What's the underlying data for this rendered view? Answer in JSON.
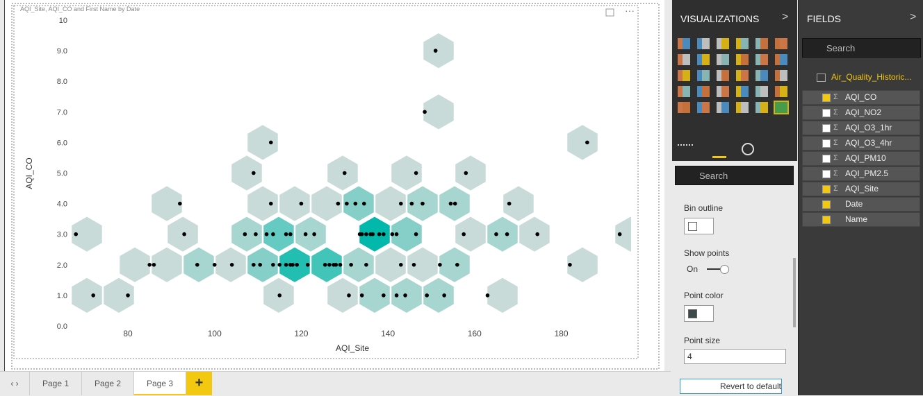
{
  "chart_data": {
    "type": "hexbin",
    "title": "AQI_Site, AQI_CO and First Name by Date",
    "x_label": "AQI_Site",
    "y_label": "AQI_CO",
    "series": [
      {
        "name": "AQI_CO",
        "color": "#000000",
        "x": [
          72,
          80,
          115,
          131,
          134,
          139,
          142,
          144,
          149,
          153,
          163,
          85,
          86,
          96,
          100,
          104,
          109,
          110.5,
          113.5,
          115,
          116.5,
          117.5,
          118,
          119,
          121.5,
          125.5,
          126.5,
          127.5,
          128,
          129,
          131.5,
          135,
          143,
          146,
          152,
          156,
          182,
          68,
          93,
          107,
          109.5,
          112,
          113.5,
          116.5,
          117.5,
          121,
          123,
          133.5,
          134,
          135,
          136,
          136.5,
          138,
          139,
          141,
          142,
          146.5,
          157.5,
          165,
          167.5,
          174.5,
          193.5,
          92,
          113,
          120,
          128.5,
          130.5,
          132.5,
          134.5,
          143,
          145.5,
          148,
          154.5,
          155.5,
          168,
          109,
          130,
          146.5,
          158,
          113,
          186,
          148.5,
          151
        ],
        "values": [
          1,
          1,
          1,
          1,
          1,
          1,
          1,
          1,
          1,
          1,
          1,
          2,
          2,
          2,
          2,
          2,
          2,
          2,
          2,
          2,
          2,
          2,
          2,
          2,
          2,
          2,
          2,
          2,
          2,
          2,
          2,
          2,
          2,
          2,
          2,
          2,
          2,
          3,
          3,
          3,
          3,
          3,
          3,
          3,
          3,
          3,
          3,
          3,
          3,
          3,
          3,
          3,
          3,
          3,
          3,
          3,
          3,
          3,
          3,
          3,
          3,
          3,
          4,
          4,
          4,
          4,
          4,
          4,
          4,
          4,
          4,
          4,
          4,
          4,
          4,
          5,
          5,
          5,
          5,
          6,
          6,
          7,
          9
        ]
      }
    ],
    "bin_colors": [
      "#c8dbd8",
      "#01b8aa"
    ],
    "bin_outline": "#ffffff",
    "xlim": [
      67,
      195
    ],
    "xticks": [
      80,
      100,
      120,
      140,
      160,
      180
    ],
    "ylim": [
      0,
      10
    ],
    "yticks": [
      {
        "value": 0,
        "label": "0.0"
      },
      {
        "value": 1,
        "label": "1.0"
      },
      {
        "value": 2,
        "label": "2.0"
      },
      {
        "value": 3,
        "label": "3.0"
      },
      {
        "value": 4,
        "label": "4.0"
      },
      {
        "value": 5,
        "label": "5.0"
      },
      {
        "value": 6,
        "label": "6.0"
      },
      {
        "value": 7,
        "label": "7.0"
      },
      {
        "value": 8,
        "label": "8.0"
      },
      {
        "value": 9,
        "label": "9.0"
      },
      10
    ],
    "grid": false
  },
  "tabs": {
    "pages": [
      "Page 1",
      "Page 2",
      "Page 3"
    ],
    "active": 2
  },
  "visualizations": {
    "title": "VISUALIZATIONS",
    "search": "Search",
    "bin_outline": "Bin outline",
    "show_points": "Show points",
    "toggle": "On",
    "point_color": "Point color",
    "point_size": "Point size",
    "point_size_value": 4,
    "revert": "Revert to default"
  },
  "fields": {
    "title": "FIELDS",
    "search": "Search",
    "table": "Air_Quality_Historic...",
    "items": [
      {
        "label": "AQI_CO",
        "checked": true,
        "sum": true
      },
      {
        "label": "AQI_NO2",
        "checked": false,
        "sum": true
      },
      {
        "label": "AQI_O3_1hr",
        "checked": false,
        "sum": true
      },
      {
        "label": "AQI_O3_4hr",
        "checked": false,
        "sum": true
      },
      {
        "label": "AQI_PM10",
        "checked": false,
        "sum": true
      },
      {
        "label": "AQI_PM2.5",
        "checked": false,
        "sum": true
      },
      {
        "label": "AQI_Site",
        "checked": true,
        "sum": true
      },
      {
        "label": "Date",
        "checked": true,
        "sum": false
      },
      {
        "label": "Name",
        "checked": true,
        "sum": false
      }
    ]
  }
}
